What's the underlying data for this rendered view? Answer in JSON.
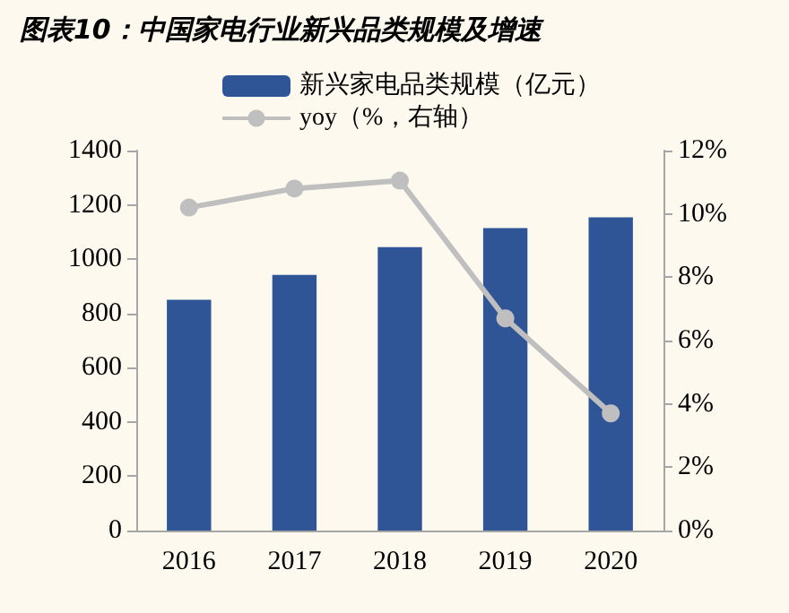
{
  "chart_data": {
    "type": "bar",
    "title": "图表10：中国家电行业新兴品类规模及增速",
    "categories": [
      "2016",
      "2017",
      "2018",
      "2019",
      "2020"
    ],
    "series": [
      {
        "name": "新兴家电品类规模（亿元）",
        "color": "#2f5597",
        "values": [
          850,
          942,
          1044,
          1114,
          1154
        ]
      },
      {
        "name": "yoy（%，右轴）",
        "type": "line",
        "axis": "y2",
        "color": "#bfbfbf",
        "values": [
          10.2,
          10.8,
          11.05,
          6.7,
          3.7
        ]
      }
    ],
    "ylim": [
      0,
      1400
    ],
    "yticks": [
      0,
      200,
      400,
      600,
      800,
      1000,
      1200,
      1400
    ],
    "y2lim": [
      0,
      12
    ],
    "y2ticks": [
      {
        "value": 0,
        "label": "0%"
      },
      {
        "value": 2,
        "label": "2%"
      },
      {
        "value": 4,
        "label": "4%"
      },
      {
        "value": 6,
        "label": "6%"
      },
      {
        "value": 8,
        "label": "8%"
      },
      {
        "value": 10,
        "label": "10%"
      },
      {
        "value": 12,
        "label": "12%"
      }
    ],
    "grid": false,
    "legend": "top",
    "marker": "circle"
  }
}
